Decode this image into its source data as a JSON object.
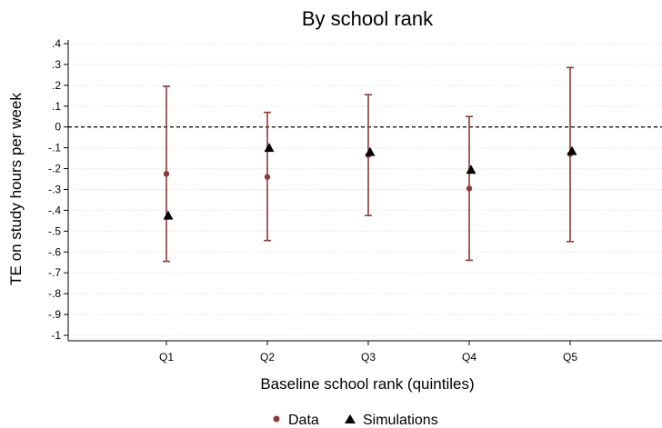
{
  "chart_data": {
    "type": "scatter",
    "title": "By school rank",
    "xlabel": "Baseline school rank (quintiles)",
    "ylabel": "TE on study hours per week",
    "categories": [
      "Q1",
      "Q2",
      "Q3",
      "Q4",
      "Q5"
    ],
    "y_ticks": [
      ".4",
      ".3",
      ".2",
      ".1",
      "0",
      "-.1",
      "-.2",
      "-.3",
      "-.4",
      "-.5",
      "-.6",
      "-.7",
      "-.8",
      "-.9",
      "-1"
    ],
    "ylim": [
      -1,
      0.4
    ],
    "reference_line": 0,
    "grid": true,
    "legend_position": "bottom",
    "series": [
      {
        "name": "Data",
        "marker": "circle",
        "color": "#8B3A3A",
        "values": [
          -0.225,
          -0.24,
          -0.135,
          -0.295,
          -0.13
        ],
        "ci_low": [
          -0.645,
          -0.545,
          -0.425,
          -0.64,
          -0.55
        ],
        "ci_high": [
          0.195,
          0.07,
          0.155,
          0.05,
          0.285
        ]
      },
      {
        "name": "Simulations",
        "marker": "triangle",
        "color": "#000000",
        "values": [
          -0.425,
          -0.1,
          -0.12,
          -0.205,
          -0.115
        ]
      }
    ]
  }
}
